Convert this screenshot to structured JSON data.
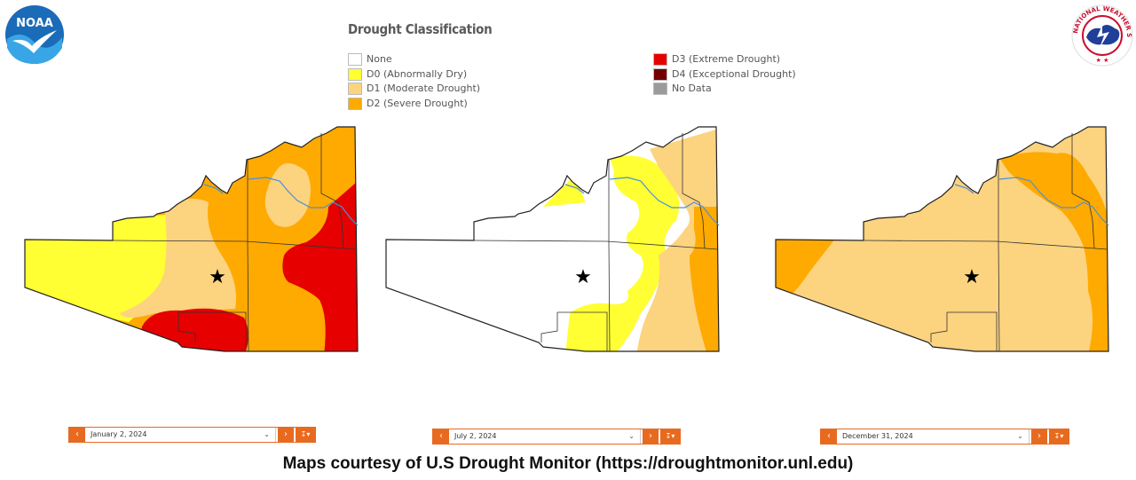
{
  "legend": {
    "title": "Drought Classification",
    "items": [
      {
        "label": "None",
        "color": "#ffffff"
      },
      {
        "label": "D0 (Abnormally Dry)",
        "color": "#ffff33"
      },
      {
        "label": "D1 (Moderate Drought)",
        "color": "#fcd37f"
      },
      {
        "label": "D2 (Severe Drought)",
        "color": "#ffaa00"
      },
      {
        "label": "D3 (Extreme Drought)",
        "color": "#e60000"
      },
      {
        "label": "D4 (Exceptional Drought)",
        "color": "#730000"
      },
      {
        "label": "No Data",
        "color": "#9b9b9b"
      }
    ]
  },
  "logos": {
    "left": "noaa-logo",
    "right": "nws-logo"
  },
  "maps": [
    {
      "date": "January 2, 2024",
      "marker": "star-icon"
    },
    {
      "date": "July 2, 2024",
      "marker": "star-icon"
    },
    {
      "date": "December 31, 2024",
      "marker": "star-icon"
    }
  ],
  "caption": "Maps courtesy of U.S Drought Monitor (https://droughtmonitor.unl.edu)"
}
